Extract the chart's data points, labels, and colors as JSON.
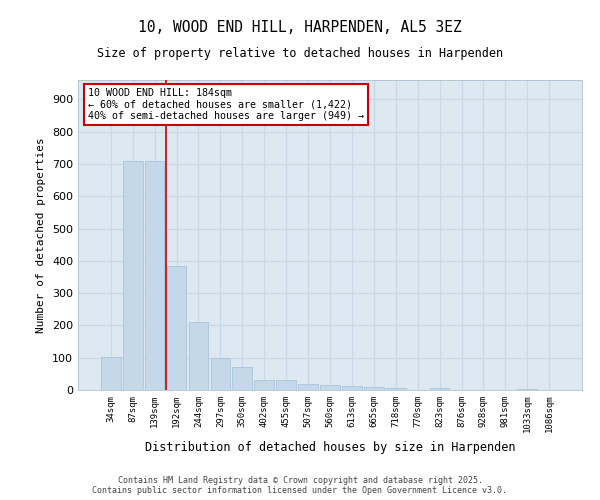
{
  "title_line1": "10, WOOD END HILL, HARPENDEN, AL5 3EZ",
  "title_line2": "Size of property relative to detached houses in Harpenden",
  "xlabel": "Distribution of detached houses by size in Harpenden",
  "ylabel": "Number of detached properties",
  "categories": [
    "34sqm",
    "87sqm",
    "139sqm",
    "192sqm",
    "244sqm",
    "297sqm",
    "350sqm",
    "402sqm",
    "455sqm",
    "507sqm",
    "560sqm",
    "613sqm",
    "665sqm",
    "718sqm",
    "770sqm",
    "823sqm",
    "876sqm",
    "928sqm",
    "981sqm",
    "1033sqm",
    "1086sqm"
  ],
  "values": [
    103,
    710,
    710,
    385,
    210,
    100,
    72,
    30,
    30,
    20,
    16,
    12,
    8,
    7,
    0,
    5,
    0,
    0,
    0,
    4,
    0
  ],
  "bar_color": "#c5d8ea",
  "bar_edge_color": "#a8c4da",
  "vline_x": 2.5,
  "vline_color": "#cc0000",
  "annotation_text": "10 WOOD END HILL: 184sqm\n← 60% of detached houses are smaller (1,422)\n40% of semi-detached houses are larger (949) →",
  "annotation_box_color": "#cc0000",
  "ylim": [
    0,
    960
  ],
  "yticks": [
    0,
    100,
    200,
    300,
    400,
    500,
    600,
    700,
    800,
    900
  ],
  "grid_color": "#c8d8e8",
  "background_color": "#dde8f0",
  "footer_line1": "Contains HM Land Registry data © Crown copyright and database right 2025.",
  "footer_line2": "Contains public sector information licensed under the Open Government Licence v3.0."
}
